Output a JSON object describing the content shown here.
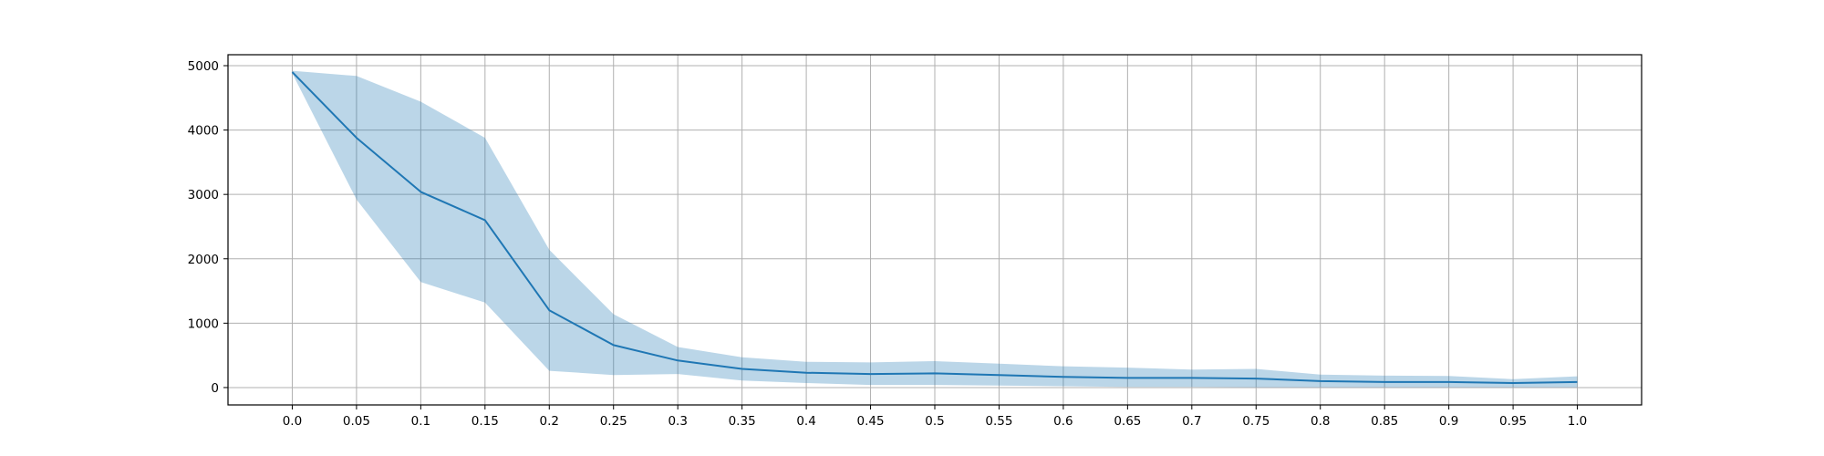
{
  "chart_data": {
    "type": "area",
    "title": "",
    "xlabel": "",
    "ylabel": "",
    "x": [
      0.0,
      0.05,
      0.1,
      0.15,
      0.2,
      0.25,
      0.3,
      0.35,
      0.4,
      0.45,
      0.5,
      0.55,
      0.6,
      0.65,
      0.7,
      0.75,
      0.8,
      0.85,
      0.9,
      0.95,
      1.0
    ],
    "x_tick_labels": [
      "0.0",
      "0.05",
      "0.1",
      "0.15",
      "0.2",
      "0.25",
      "0.3",
      "0.35",
      "0.4",
      "0.45",
      "0.5",
      "0.55",
      "0.6",
      "0.65",
      "0.7",
      "0.75",
      "0.8",
      "0.85",
      "0.9",
      "0.95",
      "1.0"
    ],
    "y_ticks": [
      0,
      1000,
      2000,
      3000,
      4000,
      5000
    ],
    "y_tick_labels": [
      "0",
      "1000",
      "2000",
      "3000",
      "4000",
      "5000"
    ],
    "xlim": [
      -0.05,
      1.05
    ],
    "ylim": [
      -270,
      5170
    ],
    "grid": true,
    "series": [
      {
        "values": [
          4900,
          3880,
          3040,
          2600,
          1200,
          660,
          420,
          290,
          230,
          210,
          220,
          195,
          165,
          150,
          150,
          140,
          100,
          85,
          85,
          70,
          85
        ],
        "lower": [
          4880,
          2920,
          1640,
          1320,
          260,
          195,
          210,
          110,
          70,
          40,
          40,
          30,
          20,
          10,
          10,
          5,
          5,
          5,
          5,
          5,
          5
        ],
        "upper": [
          4920,
          4840,
          4440,
          3880,
          2140,
          1140,
          630,
          470,
          400,
          390,
          410,
          370,
          330,
          310,
          280,
          290,
          200,
          185,
          180,
          130,
          175
        ],
        "color": "#1f77b4",
        "band_color": "#1f77b4",
        "band_opacity": 0.3
      }
    ],
    "colors": {
      "axis": "#000000",
      "grid": "#b0b0b0"
    }
  }
}
